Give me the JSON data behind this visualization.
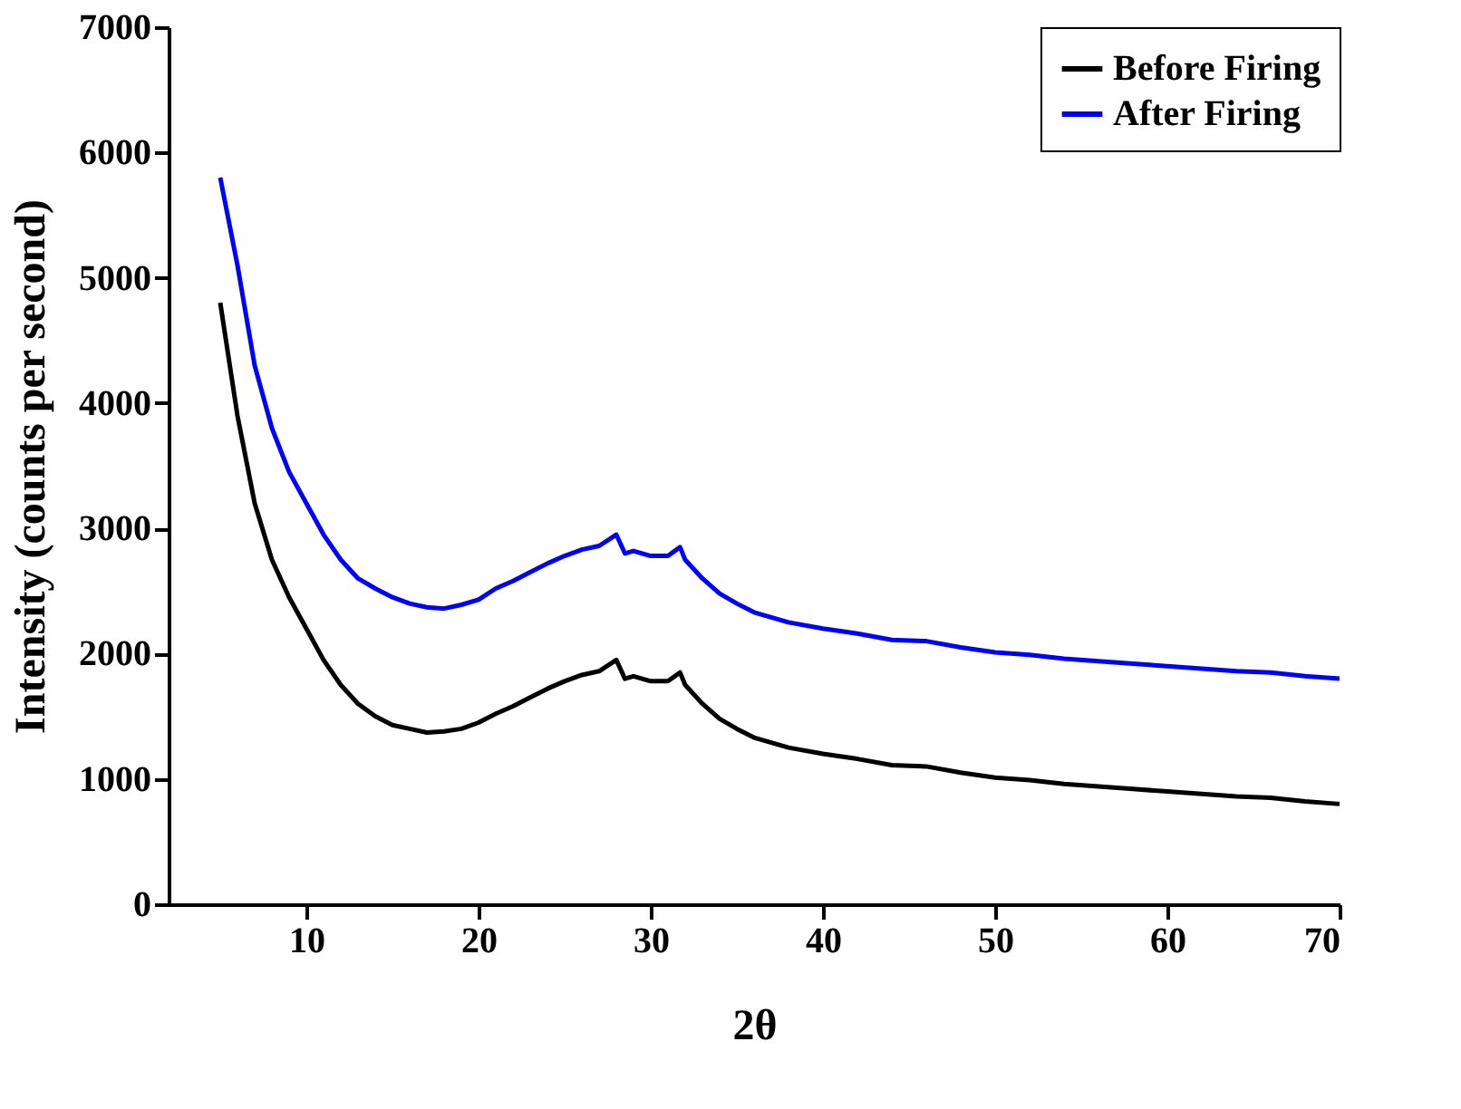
{
  "chart_data": {
    "type": "line",
    "xlabel": "2θ",
    "ylabel": "Intensity (counts per second)",
    "x": [
      5,
      6,
      7,
      8,
      9,
      10,
      11,
      12,
      13,
      14,
      15,
      16,
      17,
      18,
      19,
      20,
      21,
      22,
      23,
      24,
      25,
      26,
      27,
      28,
      28.5,
      29,
      30,
      31,
      31.7,
      32,
      33,
      34,
      35,
      36,
      38,
      40,
      42,
      44,
      46,
      48,
      50,
      52,
      54,
      56,
      58,
      60,
      62,
      64,
      66,
      68,
      70
    ],
    "series": [
      {
        "name": "Before Firing",
        "color": "#000000",
        "values": [
          4800,
          3900,
          3200,
          2750,
          2450,
          2200,
          1950,
          1750,
          1600,
          1500,
          1430,
          1400,
          1370,
          1380,
          1400,
          1450,
          1520,
          1580,
          1650,
          1720,
          1780,
          1830,
          1860,
          1950,
          1800,
          1820,
          1780,
          1780,
          1850,
          1750,
          1600,
          1480,
          1400,
          1330,
          1250,
          1200,
          1160,
          1110,
          1100,
          1050,
          1010,
          990,
          960,
          940,
          920,
          900,
          880,
          860,
          850,
          820,
          800
        ]
      },
      {
        "name": "After Firing",
        "color": "#0000ff",
        "values": [
          5800,
          5100,
          4300,
          3800,
          3450,
          3200,
          2950,
          2750,
          2600,
          2520,
          2450,
          2400,
          2370,
          2360,
          2390,
          2430,
          2520,
          2580,
          2650,
          2720,
          2780,
          2830,
          2860,
          2950,
          2800,
          2820,
          2780,
          2780,
          2850,
          2750,
          2600,
          2480,
          2400,
          2330,
          2250,
          2200,
          2160,
          2110,
          2100,
          2050,
          2010,
          1990,
          1960,
          1940,
          1920,
          1900,
          1880,
          1860,
          1850,
          1820,
          1800
        ]
      }
    ],
    "xlim": [
      2,
      70
    ],
    "xticks": [
      10,
      20,
      30,
      40,
      50,
      60,
      70
    ],
    "ylim": [
      0,
      7000
    ],
    "yticks": [
      0,
      1000,
      2000,
      3000,
      4000,
      5000,
      6000,
      7000
    ],
    "grid": false,
    "legend": "top right",
    "marker": "none",
    "line_style": "solid"
  }
}
